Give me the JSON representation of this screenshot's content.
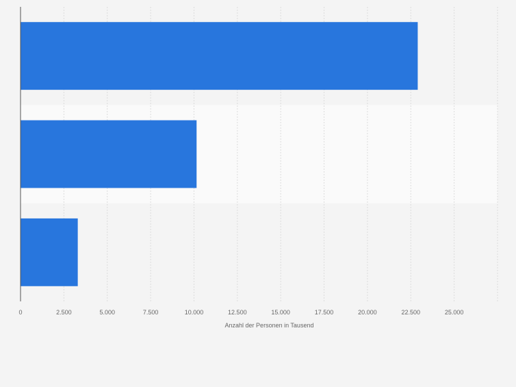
{
  "chart_data": {
    "type": "bar",
    "orientation": "horizontal",
    "categories": [
      "",
      "",
      ""
    ],
    "values": [
      22900,
      10150,
      3300
    ],
    "xlabel": "Anzahl der Personen in Tausend",
    "ylabel": "",
    "xlim": [
      0,
      27500
    ],
    "ticks": [
      0,
      2500,
      5000,
      7500,
      10000,
      12500,
      15000,
      17500,
      20000,
      22500,
      25000
    ],
    "tick_labels": [
      "0",
      "2.500",
      "5.000",
      "7.500",
      "10.000",
      "12.500",
      "15.000",
      "17.500",
      "20.000",
      "22.500",
      "25.000"
    ],
    "grid": true,
    "legend": "none",
    "colors": {
      "bar": "#2876dd",
      "background": "#f4f4f4",
      "band_alt": "#fafafa",
      "grid": "#dcdcdc",
      "axis": "#555555",
      "text": "#666666"
    }
  }
}
